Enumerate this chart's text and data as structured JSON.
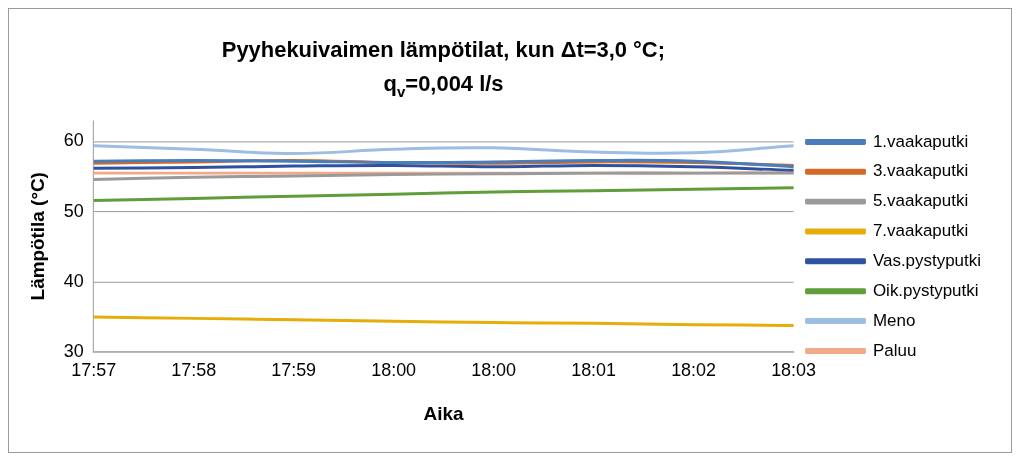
{
  "chart_data": {
    "type": "line",
    "title": "Pyyhekuivaimen lämpötilat, kun Δt=3,0 °C; q$_{v}$=0,004 l/s",
    "xlabel": "Aika",
    "ylabel": "Lämpötila (°C)",
    "categories": [
      "17:57",
      "17:58",
      "17:59",
      "18:00",
      "18:00",
      "18:01",
      "18:02",
      "18:03"
    ],
    "series": [
      {
        "name": "1.vaakaputki",
        "color": "#4a7ebb",
        "values": [
          57.2,
          57.3,
          57.2,
          57.0,
          57.1,
          57.3,
          57.2,
          56.4
        ]
      },
      {
        "name": "3.vaakaputki",
        "color": "#d46a28",
        "values": [
          56.9,
          57.1,
          57.3,
          57.0,
          56.9,
          57.1,
          57.0,
          56.6
        ]
      },
      {
        "name": "5.vaakaputki",
        "color": "#9a9a9a",
        "values": [
          54.6,
          54.9,
          55.1,
          55.3,
          55.4,
          55.5,
          55.5,
          55.5
        ]
      },
      {
        "name": "7.vaakaputki",
        "color": "#e6ad0a",
        "values": [
          35.0,
          34.8,
          34.6,
          34.4,
          34.2,
          34.1,
          33.9,
          33.8
        ]
      },
      {
        "name": "Vas.pystyputki",
        "color": "#2f52a0",
        "values": [
          56.2,
          56.3,
          56.5,
          56.6,
          56.4,
          56.6,
          56.4,
          55.9
        ]
      },
      {
        "name": "Oik.pystyputki",
        "color": "#5f9e3a",
        "values": [
          51.6,
          51.9,
          52.2,
          52.5,
          52.8,
          53.0,
          53.2,
          53.4
        ]
      },
      {
        "name": "Meno",
        "color": "#9dbde3",
        "values": [
          59.4,
          58.9,
          58.3,
          58.9,
          59.1,
          58.5,
          58.4,
          59.4
        ]
      },
      {
        "name": "Paluu",
        "color": "#f2a98a",
        "values": [
          55.5,
          55.5,
          55.5,
          55.5,
          55.5,
          55.5,
          55.5,
          55.6
        ]
      }
    ],
    "ylim": [
      30,
      63
    ],
    "yticks": [
      30,
      40,
      50,
      60
    ],
    "grid": "y",
    "legend": "right",
    "marker": "none",
    "line_style": "solid"
  }
}
